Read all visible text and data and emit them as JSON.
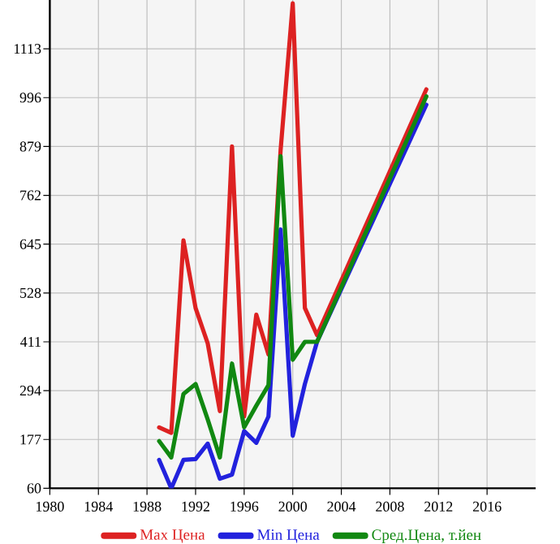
{
  "chart_data": {
    "type": "line",
    "x": [
      1989,
      1990,
      1991,
      1992,
      1993,
      1994,
      1995,
      1996,
      1997,
      1998,
      1999,
      2000,
      2001,
      2002,
      2011
    ],
    "series": [
      {
        "name": "Max Цена",
        "color": "#dd2222",
        "values": [
          206,
          193,
          654,
          492,
          407,
          245,
          879,
          232,
          476,
          381,
          870,
          1222,
          492,
          427,
          1016
        ]
      },
      {
        "name": "Min Цена",
        "color": "#2222dd",
        "values": [
          128,
          60,
          128,
          130,
          167,
          83,
          93,
          197,
          169,
          232,
          680,
          186,
          310,
          411,
          979
        ]
      },
      {
        "name": "Сред.Цена, т.йен",
        "color": "#118811",
        "values": [
          173,
          134,
          286,
          310,
          225,
          134,
          359,
          206,
          258,
          307,
          856,
          368,
          411,
          411,
          999
        ]
      }
    ],
    "xlim": [
      1980,
      2020
    ],
    "ylim": [
      60,
      1230
    ],
    "xticks": [
      1980,
      1984,
      1988,
      1992,
      1996,
      2000,
      2004,
      2008,
      2012,
      2016
    ],
    "yticks": [
      60,
      177,
      294,
      411,
      528,
      645,
      762,
      879,
      996,
      1113
    ],
    "grid": true,
    "legend": "bottom",
    "marker": "none",
    "line_style": "solid"
  }
}
